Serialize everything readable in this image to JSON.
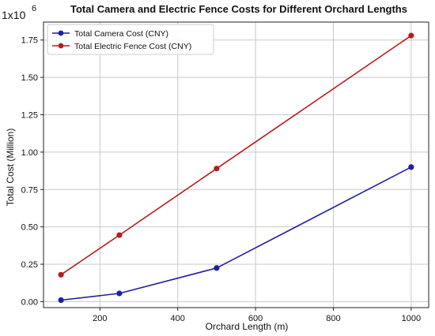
{
  "chart_data": {
    "type": "line",
    "title": "Total Camera and Electric Fence Costs for Different Orchard Lengths",
    "xlabel": "Orchard Length (m)",
    "ylabel": "Total Cost (Million)",
    "y_multiplier_label": "1x10",
    "y_multiplier_exponent": "6",
    "x": [
      100,
      250,
      500,
      1000
    ],
    "xlim": [
      55,
      1045
    ],
    "ylim": [
      -0.04,
      1.87
    ],
    "x_ticks": [
      200,
      400,
      600,
      800,
      1000
    ],
    "x_tick_labels": [
      "200",
      "400",
      "600",
      "800",
      "1000"
    ],
    "y_ticks": [
      0,
      0.25,
      0.5,
      0.75,
      1.0,
      1.25,
      1.5,
      1.75
    ],
    "y_tick_labels": [
      "0.00",
      "0.25",
      "0.50",
      "0.75",
      "1.00",
      "1.25",
      "1.50",
      "1.75"
    ],
    "grid": true,
    "legend_position": "top-left",
    "series": [
      {
        "name": "Total Camera Cost (CNY)",
        "color": "#1f1f9e",
        "values": [
          0.01,
          0.055,
          0.225,
          0.9
        ]
      },
      {
        "name": "Total Electric Fence Cost (CNY)",
        "color": "#b81c1c",
        "values": [
          0.18,
          0.445,
          0.89,
          1.78
        ]
      }
    ]
  }
}
